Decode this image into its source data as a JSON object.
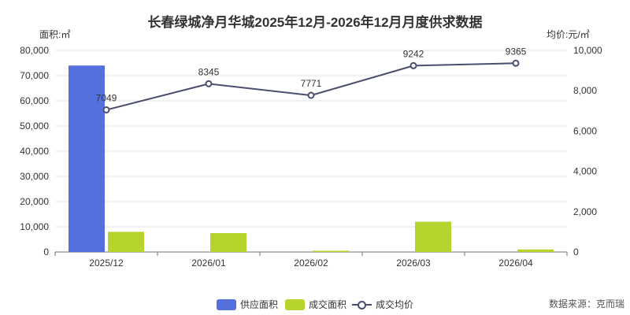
{
  "chart_data": {
    "type": "bar",
    "title": "长春绿城净月华城2025年12月-2026年12月月度供求数据",
    "y_left_label": "面积:㎡",
    "y_right_label": "均价:元/㎡",
    "categories": [
      "2025/12",
      "2026/01",
      "2026/02",
      "2026/03",
      "2026/04"
    ],
    "ylim_left": [
      0,
      80000
    ],
    "yticks_left": [
      0,
      10000,
      20000,
      30000,
      40000,
      50000,
      60000,
      70000,
      80000
    ],
    "ytick_labels_left": [
      "0",
      "10,000",
      "20,000",
      "30,000",
      "40,000",
      "50,000",
      "60,000",
      "70,000",
      "80,000"
    ],
    "ylim_right": [
      0,
      10000
    ],
    "yticks_right": [
      0,
      2000,
      4000,
      6000,
      8000,
      10000
    ],
    "ytick_labels_right": [
      "0",
      "2,000",
      "4,000",
      "6,000",
      "8,000",
      "10,000"
    ],
    "series": [
      {
        "name": "供应面积",
        "type": "bar",
        "axis": "left",
        "color": "#5470dc",
        "values": [
          74000,
          0,
          0,
          0,
          0
        ]
      },
      {
        "name": "成交面积",
        "type": "bar",
        "axis": "left",
        "color": "#b5d52e",
        "values": [
          8000,
          7500,
          500,
          12000,
          1000
        ]
      },
      {
        "name": "成交均价",
        "type": "line",
        "axis": "right",
        "color": "#4a4e6e",
        "values": [
          7049,
          8345,
          7771,
          9242,
          9365
        ],
        "data_labels": [
          "7049",
          "8345",
          "7771",
          "9242",
          "9365"
        ]
      }
    ],
    "grid": true,
    "legend_position": "bottom-center"
  },
  "source": "数据来源：克而瑞"
}
